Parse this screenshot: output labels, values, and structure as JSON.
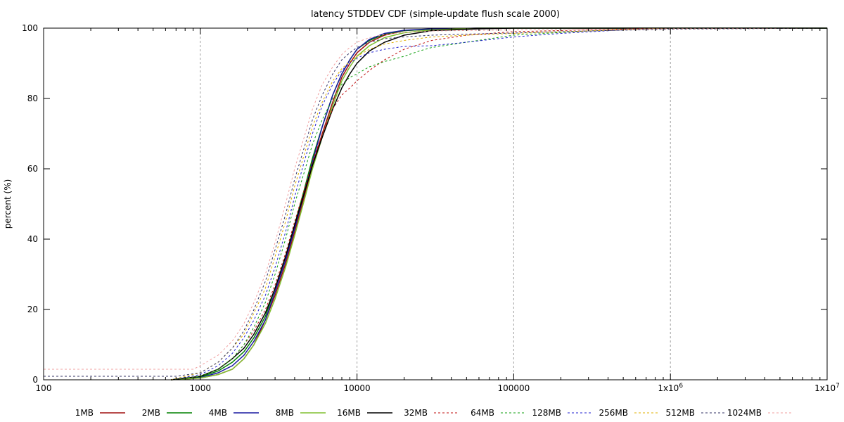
{
  "chart_data": {
    "type": "line",
    "title": "latency STDDEV CDF (simple-update flush scale 2000)",
    "xlabel": "",
    "ylabel": "percent (%)",
    "xscale": "log",
    "xlim": [
      100,
      10000000
    ],
    "ylim": [
      0,
      100
    ],
    "x_ticks": [
      {
        "value": 100,
        "label": "100"
      },
      {
        "value": 1000,
        "label": "1000"
      },
      {
        "value": 10000,
        "label": "10000"
      },
      {
        "value": 100000,
        "label": "100000"
      },
      {
        "value": 1000000,
        "label": "1x10",
        "sup": "6"
      },
      {
        "value": 10000000,
        "label": "1x10",
        "sup": "7"
      }
    ],
    "y_ticks": [
      0,
      20,
      40,
      60,
      80,
      100
    ],
    "grid": "vertical dashed",
    "legend_position": "bottom",
    "series": [
      {
        "name": "1MB",
        "color": "#a01010",
        "style": "solid",
        "points": [
          [
            650,
            0
          ],
          [
            1000,
            0.5
          ],
          [
            1300,
            1.5
          ],
          [
            1600,
            3
          ],
          [
            1900,
            6
          ],
          [
            2200,
            10
          ],
          [
            2600,
            17
          ],
          [
            3000,
            24
          ],
          [
            3500,
            33
          ],
          [
            4000,
            42
          ],
          [
            4600,
            52
          ],
          [
            5200,
            61
          ],
          [
            6000,
            70
          ],
          [
            7000,
            79
          ],
          [
            8000,
            86
          ],
          [
            9000,
            90
          ],
          [
            10000,
            93
          ],
          [
            12000,
            96
          ],
          [
            15000,
            98
          ],
          [
            20000,
            99.3
          ],
          [
            30000,
            99.7
          ],
          [
            60000,
            100
          ],
          [
            10000000,
            100
          ]
        ]
      },
      {
        "name": "2MB",
        "color": "#008000",
        "style": "solid",
        "points": [
          [
            650,
            0
          ],
          [
            1000,
            0.8
          ],
          [
            1300,
            2.5
          ],
          [
            1600,
            5
          ],
          [
            1900,
            8
          ],
          [
            2200,
            12
          ],
          [
            2600,
            18
          ],
          [
            3000,
            26
          ],
          [
            3500,
            35
          ],
          [
            4000,
            44
          ],
          [
            4600,
            54
          ],
          [
            5200,
            63
          ],
          [
            6000,
            72
          ],
          [
            7000,
            81
          ],
          [
            8000,
            87
          ],
          [
            9000,
            91
          ],
          [
            10000,
            94
          ],
          [
            12000,
            96.5
          ],
          [
            15000,
            98.3
          ],
          [
            20000,
            99.3
          ],
          [
            30000,
            99.7
          ],
          [
            60000,
            100
          ],
          [
            10000000,
            100
          ]
        ]
      },
      {
        "name": "4MB",
        "color": "#1a1aa0",
        "style": "solid",
        "points": [
          [
            650,
            0
          ],
          [
            1000,
            0.6
          ],
          [
            1300,
            2
          ],
          [
            1600,
            4
          ],
          [
            1900,
            7
          ],
          [
            2200,
            11
          ],
          [
            2600,
            17
          ],
          [
            3000,
            25
          ],
          [
            3500,
            34
          ],
          [
            4000,
            43
          ],
          [
            4600,
            53
          ],
          [
            5200,
            62
          ],
          [
            6000,
            72
          ],
          [
            7000,
            81
          ],
          [
            8000,
            87
          ],
          [
            9000,
            91
          ],
          [
            10000,
            94
          ],
          [
            12000,
            96.8
          ],
          [
            15000,
            98.5
          ],
          [
            20000,
            99.4
          ],
          [
            30000,
            99.8
          ],
          [
            60000,
            100
          ],
          [
            10000000,
            100
          ]
        ]
      },
      {
        "name": "8MB",
        "color": "#80c030",
        "style": "solid",
        "points": [
          [
            650,
            0
          ],
          [
            1000,
            0.5
          ],
          [
            1300,
            1.5
          ],
          [
            1600,
            3
          ],
          [
            1900,
            6
          ],
          [
            2200,
            10
          ],
          [
            2600,
            16
          ],
          [
            3000,
            23
          ],
          [
            3500,
            32
          ],
          [
            4000,
            41
          ],
          [
            4600,
            51
          ],
          [
            5200,
            60
          ],
          [
            6000,
            69
          ],
          [
            7000,
            78
          ],
          [
            8000,
            85
          ],
          [
            9000,
            89
          ],
          [
            10000,
            92
          ],
          [
            12000,
            95
          ],
          [
            15000,
            97.3
          ],
          [
            20000,
            98.7
          ],
          [
            30000,
            99.5
          ],
          [
            60000,
            100
          ],
          [
            10000000,
            100
          ]
        ]
      },
      {
        "name": "16MB",
        "color": "#000000",
        "style": "solid",
        "points": [
          [
            650,
            0
          ],
          [
            1000,
            1
          ],
          [
            1300,
            3
          ],
          [
            1600,
            6
          ],
          [
            1900,
            9
          ],
          [
            2200,
            13
          ],
          [
            2600,
            19
          ],
          [
            3000,
            26
          ],
          [
            3500,
            35
          ],
          [
            4000,
            44
          ],
          [
            4600,
            53
          ],
          [
            5200,
            61
          ],
          [
            6000,
            69
          ],
          [
            7000,
            77
          ],
          [
            8000,
            83
          ],
          [
            9000,
            87
          ],
          [
            10000,
            90
          ],
          [
            12000,
            93.5
          ],
          [
            15000,
            96
          ],
          [
            20000,
            98
          ],
          [
            30000,
            99.3
          ],
          [
            60000,
            99.8
          ],
          [
            100000,
            100
          ],
          [
            10000000,
            100
          ]
        ]
      },
      {
        "name": "32MB",
        "color": "#c01010",
        "style": "dotted",
        "points": [
          [
            650,
            0
          ],
          [
            1000,
            1
          ],
          [
            1300,
            3
          ],
          [
            1600,
            6
          ],
          [
            1900,
            10
          ],
          [
            2200,
            14
          ],
          [
            2600,
            20
          ],
          [
            3000,
            27
          ],
          [
            3500,
            36
          ],
          [
            4000,
            45
          ],
          [
            4600,
            54
          ],
          [
            5200,
            62
          ],
          [
            6000,
            70
          ],
          [
            7000,
            77
          ],
          [
            8000,
            81
          ],
          [
            9000,
            83
          ],
          [
            10000,
            85
          ],
          [
            12000,
            88
          ],
          [
            15000,
            91
          ],
          [
            20000,
            94
          ],
          [
            30000,
            96.5
          ],
          [
            50000,
            98
          ],
          [
            100000,
            99
          ],
          [
            300000,
            99.5
          ],
          [
            1000000,
            100
          ],
          [
            10000000,
            100
          ]
        ]
      },
      {
        "name": "64MB",
        "color": "#10a010",
        "style": "dotted",
        "points": [
          [
            650,
            0
          ],
          [
            1000,
            1
          ],
          [
            1300,
            3
          ],
          [
            1600,
            6
          ],
          [
            1900,
            10
          ],
          [
            2200,
            15
          ],
          [
            2600,
            22
          ],
          [
            3000,
            30
          ],
          [
            3500,
            40
          ],
          [
            4000,
            50
          ],
          [
            4600,
            59
          ],
          [
            5200,
            67
          ],
          [
            6000,
            74
          ],
          [
            7000,
            80
          ],
          [
            8000,
            84
          ],
          [
            9000,
            86
          ],
          [
            10000,
            87
          ],
          [
            12000,
            89
          ],
          [
            15000,
            90.5
          ],
          [
            20000,
            92
          ],
          [
            25000,
            93.5
          ],
          [
            30000,
            94.5
          ],
          [
            50000,
            96
          ],
          [
            100000,
            98
          ],
          [
            300000,
            99.2
          ],
          [
            1000000,
            100
          ],
          [
            10000000,
            100
          ]
        ]
      },
      {
        "name": "128MB",
        "color": "#2020d0",
        "style": "dotted",
        "points": [
          [
            650,
            0
          ],
          [
            1000,
            1.5
          ],
          [
            1300,
            4
          ],
          [
            1600,
            7.5
          ],
          [
            1900,
            12
          ],
          [
            2200,
            17
          ],
          [
            2600,
            24
          ],
          [
            3000,
            32
          ],
          [
            3500,
            42
          ],
          [
            4000,
            52
          ],
          [
            4600,
            62
          ],
          [
            5200,
            70
          ],
          [
            6000,
            78
          ],
          [
            7000,
            84
          ],
          [
            8000,
            88
          ],
          [
            9000,
            90
          ],
          [
            10000,
            91.5
          ],
          [
            12000,
            93
          ],
          [
            15000,
            94
          ],
          [
            20000,
            94.8
          ],
          [
            30000,
            95
          ],
          [
            50000,
            96
          ],
          [
            100000,
            97.5
          ],
          [
            200000,
            98.5
          ],
          [
            500000,
            99.5
          ],
          [
            1000000,
            100
          ],
          [
            10000000,
            100
          ]
        ]
      },
      {
        "name": "256MB",
        "color": "#e0b000",
        "style": "dotted",
        "points": [
          [
            650,
            0
          ],
          [
            1000,
            2
          ],
          [
            1300,
            5
          ],
          [
            1600,
            9
          ],
          [
            1900,
            13
          ],
          [
            2200,
            19
          ],
          [
            2600,
            26
          ],
          [
            3000,
            35
          ],
          [
            3500,
            45
          ],
          [
            4000,
            55
          ],
          [
            4600,
            64
          ],
          [
            5200,
            72
          ],
          [
            6000,
            79
          ],
          [
            7000,
            85
          ],
          [
            8000,
            88.5
          ],
          [
            9000,
            90.5
          ],
          [
            10000,
            92
          ],
          [
            12000,
            94
          ],
          [
            15000,
            95.5
          ],
          [
            20000,
            96.5
          ],
          [
            30000,
            97.5
          ],
          [
            50000,
            98
          ],
          [
            100000,
            98.5
          ],
          [
            300000,
            99.2
          ],
          [
            1000000,
            100
          ],
          [
            10000000,
            100
          ]
        ]
      },
      {
        "name": "512MB",
        "color": "#333366",
        "style": "dotted",
        "points": [
          [
            100,
            1
          ],
          [
            700,
            1
          ],
          [
            1000,
            2
          ],
          [
            1300,
            5
          ],
          [
            1600,
            9
          ],
          [
            1900,
            14
          ],
          [
            2200,
            20
          ],
          [
            2600,
            28
          ],
          [
            3000,
            37
          ],
          [
            3500,
            47
          ],
          [
            4000,
            57
          ],
          [
            4600,
            66
          ],
          [
            5200,
            74
          ],
          [
            6000,
            81
          ],
          [
            7000,
            87
          ],
          [
            8000,
            91
          ],
          [
            9000,
            93
          ],
          [
            10000,
            94.5
          ],
          [
            12000,
            96
          ],
          [
            15000,
            97
          ],
          [
            20000,
            97.5
          ],
          [
            30000,
            98
          ],
          [
            50000,
            98.3
          ],
          [
            100000,
            98.6
          ],
          [
            300000,
            99.2
          ],
          [
            1000000,
            99.7
          ],
          [
            10000000,
            100
          ]
        ]
      },
      {
        "name": "1024MB",
        "color": "#f0a0a0",
        "style": "dotted",
        "points": [
          [
            100,
            3
          ],
          [
            900,
            3
          ],
          [
            1000,
            4
          ],
          [
            1300,
            7
          ],
          [
            1600,
            11
          ],
          [
            1900,
            16
          ],
          [
            2200,
            22
          ],
          [
            2600,
            30
          ],
          [
            3000,
            39
          ],
          [
            3500,
            50
          ],
          [
            4000,
            60
          ],
          [
            4600,
            69
          ],
          [
            5200,
            77
          ],
          [
            6000,
            84
          ],
          [
            7000,
            89
          ],
          [
            8000,
            92.5
          ],
          [
            9000,
            94.5
          ],
          [
            10000,
            96
          ],
          [
            12000,
            97.3
          ],
          [
            15000,
            98.2
          ],
          [
            20000,
            98.8
          ],
          [
            30000,
            99.2
          ],
          [
            100000,
            99.5
          ],
          [
            1000000,
            99.8
          ],
          [
            10000000,
            100
          ]
        ]
      }
    ]
  }
}
